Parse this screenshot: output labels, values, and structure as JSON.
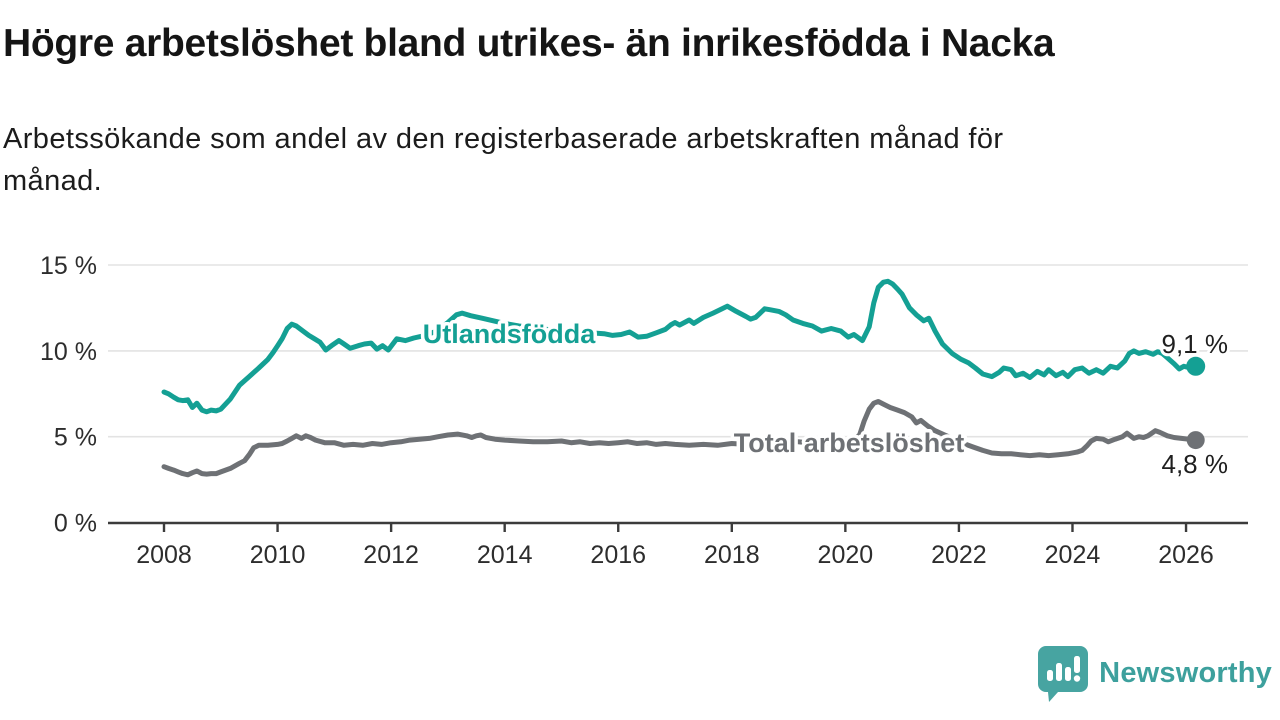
{
  "title": "Högre arbetslöshet bland utrikes- än inrikesfödda i Nacka",
  "subtitle": "Arbetssökande som andel av den registerbaserade arbetskraften månad för månad.",
  "branding": {
    "logo_text": "Newsworthy",
    "logo_color": "#47a4a1"
  },
  "colors": {
    "utlandsfodda": "#14a094",
    "total": "#6e7175",
    "grid": "#e3e3e3",
    "axis": "#3b3b3b",
    "text": "#2d2d2d"
  },
  "chart_data": {
    "type": "line",
    "title": "Högre arbetslöshet bland utrikes- än inrikesfödda i Nacka",
    "subtitle": "Arbetssökande som andel av den registerbaserade arbetskraften månad för månad.",
    "x_axis": {
      "unit": "year",
      "ticks": [
        2008,
        2010,
        2012,
        2014,
        2016,
        2018,
        2020,
        2022,
        2024,
        2026
      ],
      "range": [
        2008,
        2026.2
      ]
    },
    "y_axis": {
      "ticks": [
        0,
        5,
        10,
        15
      ],
      "tick_suffix": " %",
      "range": [
        0,
        15
      ],
      "grid": true
    },
    "legend_position": "inline-labels",
    "series": [
      {
        "name": "Utlandsfödda",
        "color": "#14a094",
        "end_label": "9,1 %",
        "end_value": 9.1,
        "points": [
          [
            2008.0,
            7.6
          ],
          [
            2008.08,
            7.5
          ],
          [
            2008.17,
            7.3
          ],
          [
            2008.25,
            7.15
          ],
          [
            2008.33,
            7.1
          ],
          [
            2008.42,
            7.15
          ],
          [
            2008.5,
            6.7
          ],
          [
            2008.58,
            6.95
          ],
          [
            2008.67,
            6.55
          ],
          [
            2008.75,
            6.45
          ],
          [
            2008.83,
            6.55
          ],
          [
            2008.92,
            6.5
          ],
          [
            2009.0,
            6.6
          ],
          [
            2009.17,
            7.2
          ],
          [
            2009.33,
            8.0
          ],
          [
            2009.5,
            8.5
          ],
          [
            2009.67,
            9.0
          ],
          [
            2009.83,
            9.5
          ],
          [
            2009.92,
            9.9
          ],
          [
            2010.0,
            10.3
          ],
          [
            2010.08,
            10.7
          ],
          [
            2010.17,
            11.3
          ],
          [
            2010.25,
            11.55
          ],
          [
            2010.33,
            11.45
          ],
          [
            2010.45,
            11.15
          ],
          [
            2010.55,
            10.9
          ],
          [
            2010.65,
            10.7
          ],
          [
            2010.75,
            10.5
          ],
          [
            2010.85,
            10.05
          ],
          [
            2010.95,
            10.3
          ],
          [
            2011.08,
            10.6
          ],
          [
            2011.17,
            10.4
          ],
          [
            2011.28,
            10.15
          ],
          [
            2011.42,
            10.3
          ],
          [
            2011.53,
            10.4
          ],
          [
            2011.65,
            10.45
          ],
          [
            2011.75,
            10.1
          ],
          [
            2011.85,
            10.3
          ],
          [
            2011.95,
            10.05
          ],
          [
            2012.1,
            10.7
          ],
          [
            2012.25,
            10.6
          ],
          [
            2012.4,
            10.75
          ],
          [
            2012.6,
            10.9
          ],
          [
            2012.8,
            11.15
          ],
          [
            2013.0,
            11.65
          ],
          [
            2013.15,
            12.1
          ],
          [
            2013.25,
            12.2
          ],
          [
            2013.4,
            12.05
          ],
          [
            2013.6,
            11.9
          ],
          [
            2013.8,
            11.75
          ],
          [
            2014.0,
            11.6
          ],
          [
            2014.25,
            11.45
          ],
          [
            2014.5,
            11.35
          ],
          [
            2014.75,
            11.25
          ],
          [
            2015.0,
            11.2
          ],
          [
            2015.25,
            11.1
          ],
          [
            2015.5,
            11.05
          ],
          [
            2015.75,
            11.0
          ],
          [
            2015.9,
            10.9
          ],
          [
            2016.05,
            10.95
          ],
          [
            2016.2,
            11.1
          ],
          [
            2016.35,
            10.8
          ],
          [
            2016.5,
            10.85
          ],
          [
            2016.67,
            11.05
          ],
          [
            2016.83,
            11.25
          ],
          [
            2016.92,
            11.5
          ],
          [
            2017.0,
            11.65
          ],
          [
            2017.08,
            11.5
          ],
          [
            2017.25,
            11.8
          ],
          [
            2017.33,
            11.6
          ],
          [
            2017.5,
            11.95
          ],
          [
            2017.67,
            12.2
          ],
          [
            2017.83,
            12.45
          ],
          [
            2017.92,
            12.6
          ],
          [
            2018.08,
            12.3
          ],
          [
            2018.25,
            12.0
          ],
          [
            2018.33,
            11.85
          ],
          [
            2018.42,
            11.95
          ],
          [
            2018.58,
            12.45
          ],
          [
            2018.67,
            12.4
          ],
          [
            2018.83,
            12.3
          ],
          [
            2018.95,
            12.1
          ],
          [
            2019.08,
            11.8
          ],
          [
            2019.25,
            11.6
          ],
          [
            2019.42,
            11.45
          ],
          [
            2019.58,
            11.15
          ],
          [
            2019.75,
            11.3
          ],
          [
            2019.92,
            11.15
          ],
          [
            2020.05,
            10.8
          ],
          [
            2020.15,
            10.95
          ],
          [
            2020.3,
            10.6
          ],
          [
            2020.42,
            11.4
          ],
          [
            2020.5,
            12.8
          ],
          [
            2020.58,
            13.7
          ],
          [
            2020.67,
            14.0
          ],
          [
            2020.75,
            14.05
          ],
          [
            2020.83,
            13.9
          ],
          [
            2020.92,
            13.6
          ],
          [
            2021.0,
            13.3
          ],
          [
            2021.13,
            12.5
          ],
          [
            2021.25,
            12.1
          ],
          [
            2021.38,
            11.75
          ],
          [
            2021.47,
            11.9
          ],
          [
            2021.58,
            11.15
          ],
          [
            2021.71,
            10.4
          ],
          [
            2021.88,
            9.85
          ],
          [
            2022.04,
            9.5
          ],
          [
            2022.17,
            9.3
          ],
          [
            2022.29,
            9.0
          ],
          [
            2022.42,
            8.65
          ],
          [
            2022.58,
            8.5
          ],
          [
            2022.71,
            8.75
          ],
          [
            2022.79,
            9.0
          ],
          [
            2022.92,
            8.9
          ],
          [
            2023.0,
            8.55
          ],
          [
            2023.13,
            8.7
          ],
          [
            2023.25,
            8.45
          ],
          [
            2023.38,
            8.8
          ],
          [
            2023.5,
            8.6
          ],
          [
            2023.58,
            8.9
          ],
          [
            2023.71,
            8.55
          ],
          [
            2023.83,
            8.75
          ],
          [
            2023.92,
            8.5
          ],
          [
            2024.04,
            8.9
          ],
          [
            2024.17,
            9.0
          ],
          [
            2024.29,
            8.7
          ],
          [
            2024.42,
            8.9
          ],
          [
            2024.54,
            8.7
          ],
          [
            2024.67,
            9.1
          ],
          [
            2024.79,
            9.0
          ],
          [
            2024.92,
            9.4
          ],
          [
            2025.0,
            9.85
          ],
          [
            2025.08,
            10.0
          ],
          [
            2025.17,
            9.85
          ],
          [
            2025.29,
            9.95
          ],
          [
            2025.42,
            9.8
          ],
          [
            2025.5,
            9.95
          ],
          [
            2025.58,
            9.85
          ],
          [
            2025.67,
            9.6
          ],
          [
            2025.79,
            9.25
          ],
          [
            2025.88,
            8.95
          ],
          [
            2025.96,
            9.1
          ],
          [
            2026.08,
            9.0
          ],
          [
            2026.17,
            9.1
          ]
        ]
      },
      {
        "name": "Total arbetslöshet",
        "color": "#6e7175",
        "end_label": "4,8 %",
        "end_value": 4.8,
        "points": [
          [
            2008.0,
            3.25
          ],
          [
            2008.08,
            3.15
          ],
          [
            2008.17,
            3.05
          ],
          [
            2008.25,
            2.95
          ],
          [
            2008.33,
            2.85
          ],
          [
            2008.42,
            2.78
          ],
          [
            2008.5,
            2.9
          ],
          [
            2008.58,
            3.0
          ],
          [
            2008.67,
            2.85
          ],
          [
            2008.75,
            2.82
          ],
          [
            2008.83,
            2.85
          ],
          [
            2008.92,
            2.85
          ],
          [
            2009.0,
            2.95
          ],
          [
            2009.17,
            3.15
          ],
          [
            2009.33,
            3.45
          ],
          [
            2009.42,
            3.6
          ],
          [
            2009.5,
            3.95
          ],
          [
            2009.58,
            4.35
          ],
          [
            2009.67,
            4.5
          ],
          [
            2009.83,
            4.5
          ],
          [
            2010.0,
            4.55
          ],
          [
            2010.08,
            4.6
          ],
          [
            2010.17,
            4.75
          ],
          [
            2010.25,
            4.9
          ],
          [
            2010.33,
            5.05
          ],
          [
            2010.42,
            4.9
          ],
          [
            2010.5,
            5.05
          ],
          [
            2010.58,
            4.95
          ],
          [
            2010.67,
            4.8
          ],
          [
            2010.83,
            4.65
          ],
          [
            2011.0,
            4.65
          ],
          [
            2011.17,
            4.5
          ],
          [
            2011.33,
            4.55
          ],
          [
            2011.5,
            4.5
          ],
          [
            2011.67,
            4.6
          ],
          [
            2011.83,
            4.55
          ],
          [
            2012.0,
            4.65
          ],
          [
            2012.17,
            4.7
          ],
          [
            2012.33,
            4.8
          ],
          [
            2012.5,
            4.85
          ],
          [
            2012.67,
            4.9
          ],
          [
            2012.83,
            5.0
          ],
          [
            2013.0,
            5.1
          ],
          [
            2013.17,
            5.15
          ],
          [
            2013.33,
            5.05
          ],
          [
            2013.42,
            4.95
          ],
          [
            2013.5,
            5.05
          ],
          [
            2013.58,
            5.1
          ],
          [
            2013.67,
            4.95
          ],
          [
            2013.83,
            4.85
          ],
          [
            2014.0,
            4.8
          ],
          [
            2014.25,
            4.75
          ],
          [
            2014.5,
            4.7
          ],
          [
            2014.75,
            4.7
          ],
          [
            2015.0,
            4.75
          ],
          [
            2015.17,
            4.65
          ],
          [
            2015.33,
            4.7
          ],
          [
            2015.5,
            4.6
          ],
          [
            2015.67,
            4.65
          ],
          [
            2015.83,
            4.6
          ],
          [
            2016.0,
            4.65
          ],
          [
            2016.17,
            4.7
          ],
          [
            2016.33,
            4.6
          ],
          [
            2016.5,
            4.65
          ],
          [
            2016.67,
            4.55
          ],
          [
            2016.83,
            4.6
          ],
          [
            2017.0,
            4.55
          ],
          [
            2017.25,
            4.5
          ],
          [
            2017.5,
            4.55
          ],
          [
            2017.75,
            4.5
          ],
          [
            2018.0,
            4.6
          ],
          [
            2018.25,
            4.55
          ],
          [
            2018.5,
            4.65
          ],
          [
            2018.75,
            4.7
          ],
          [
            2019.0,
            4.8
          ],
          [
            2019.17,
            4.7
          ],
          [
            2019.33,
            4.65
          ],
          [
            2019.58,
            4.6
          ],
          [
            2019.83,
            4.6
          ],
          [
            2020.08,
            4.7
          ],
          [
            2020.25,
            5.1
          ],
          [
            2020.33,
            5.9
          ],
          [
            2020.42,
            6.6
          ],
          [
            2020.5,
            6.95
          ],
          [
            2020.58,
            7.05
          ],
          [
            2020.67,
            6.9
          ],
          [
            2020.79,
            6.7
          ],
          [
            2020.92,
            6.55
          ],
          [
            2021.04,
            6.4
          ],
          [
            2021.17,
            6.15
          ],
          [
            2021.25,
            5.8
          ],
          [
            2021.33,
            5.95
          ],
          [
            2021.46,
            5.6
          ],
          [
            2021.58,
            5.35
          ],
          [
            2021.75,
            5.1
          ],
          [
            2021.92,
            4.85
          ],
          [
            2022.08,
            4.6
          ],
          [
            2022.25,
            4.4
          ],
          [
            2022.42,
            4.2
          ],
          [
            2022.58,
            4.05
          ],
          [
            2022.75,
            4.0
          ],
          [
            2022.92,
            4.0
          ],
          [
            2023.08,
            3.95
          ],
          [
            2023.25,
            3.9
          ],
          [
            2023.42,
            3.95
          ],
          [
            2023.58,
            3.9
          ],
          [
            2023.75,
            3.95
          ],
          [
            2023.92,
            4.0
          ],
          [
            2024.08,
            4.1
          ],
          [
            2024.17,
            4.2
          ],
          [
            2024.25,
            4.45
          ],
          [
            2024.33,
            4.75
          ],
          [
            2024.42,
            4.9
          ],
          [
            2024.54,
            4.85
          ],
          [
            2024.63,
            4.7
          ],
          [
            2024.75,
            4.85
          ],
          [
            2024.88,
            5.0
          ],
          [
            2024.96,
            5.2
          ],
          [
            2025.08,
            4.9
          ],
          [
            2025.17,
            5.0
          ],
          [
            2025.25,
            4.95
          ],
          [
            2025.33,
            5.05
          ],
          [
            2025.46,
            5.35
          ],
          [
            2025.54,
            5.25
          ],
          [
            2025.67,
            5.05
          ],
          [
            2025.79,
            4.95
          ],
          [
            2025.92,
            4.9
          ],
          [
            2026.04,
            4.85
          ],
          [
            2026.17,
            4.8
          ]
        ]
      }
    ]
  }
}
